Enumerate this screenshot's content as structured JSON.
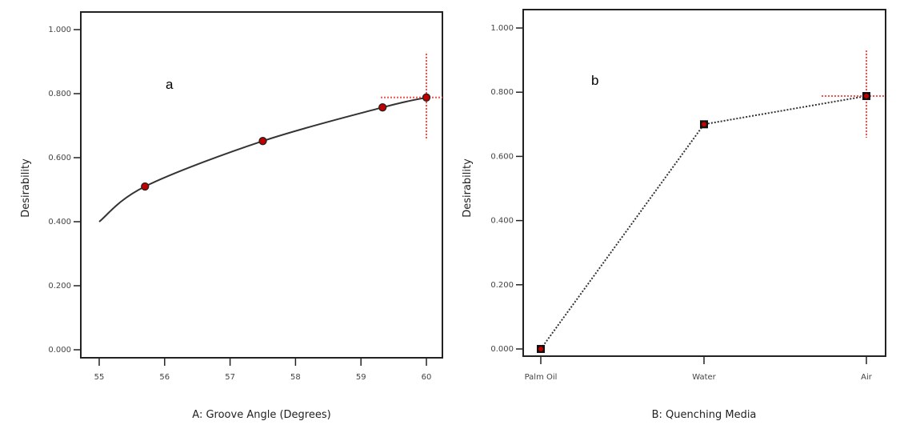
{
  "chart_data": [
    {
      "type": "line",
      "panel_label": "a",
      "xlabel": "A: Groove Angle (Degrees)",
      "ylabel": "Desirability",
      "xlim": [
        55,
        60
      ],
      "ylim": [
        0,
        1
      ],
      "x_ticks": [
        "55",
        "56",
        "57",
        "58",
        "59",
        "60"
      ],
      "y_ticks": [
        "0.000",
        "0.200",
        "0.400",
        "0.600",
        "0.800",
        "1.000"
      ],
      "curve": {
        "x": [
          55,
          55.7,
          57.5,
          59.33,
          60
        ],
        "y": [
          0.4,
          0.51,
          0.652,
          0.757,
          0.788
        ]
      },
      "points": {
        "x": [
          55.7,
          57.5,
          59.33,
          60
        ],
        "y": [
          0.51,
          0.652,
          0.757,
          0.788
        ]
      },
      "optimum": {
        "x": 60,
        "y": 0.788
      },
      "grid": false
    },
    {
      "type": "line",
      "panel_label": "b",
      "xlabel": "B: Quenching Media",
      "ylabel": "Desirability",
      "categories": [
        "Palm Oil",
        "Water",
        "Air"
      ],
      "values": [
        0.0,
        0.7,
        0.788
      ],
      "ylim": [
        0,
        1
      ],
      "y_ticks": [
        "0.000",
        "0.200",
        "0.400",
        "0.600",
        "0.800",
        "1.000"
      ],
      "optimum": {
        "category": "Air",
        "y": 0.788
      },
      "grid": false
    }
  ],
  "colors": {
    "marker": "#c00000",
    "line": "#333333",
    "crosshair": "#ff4d4d"
  }
}
